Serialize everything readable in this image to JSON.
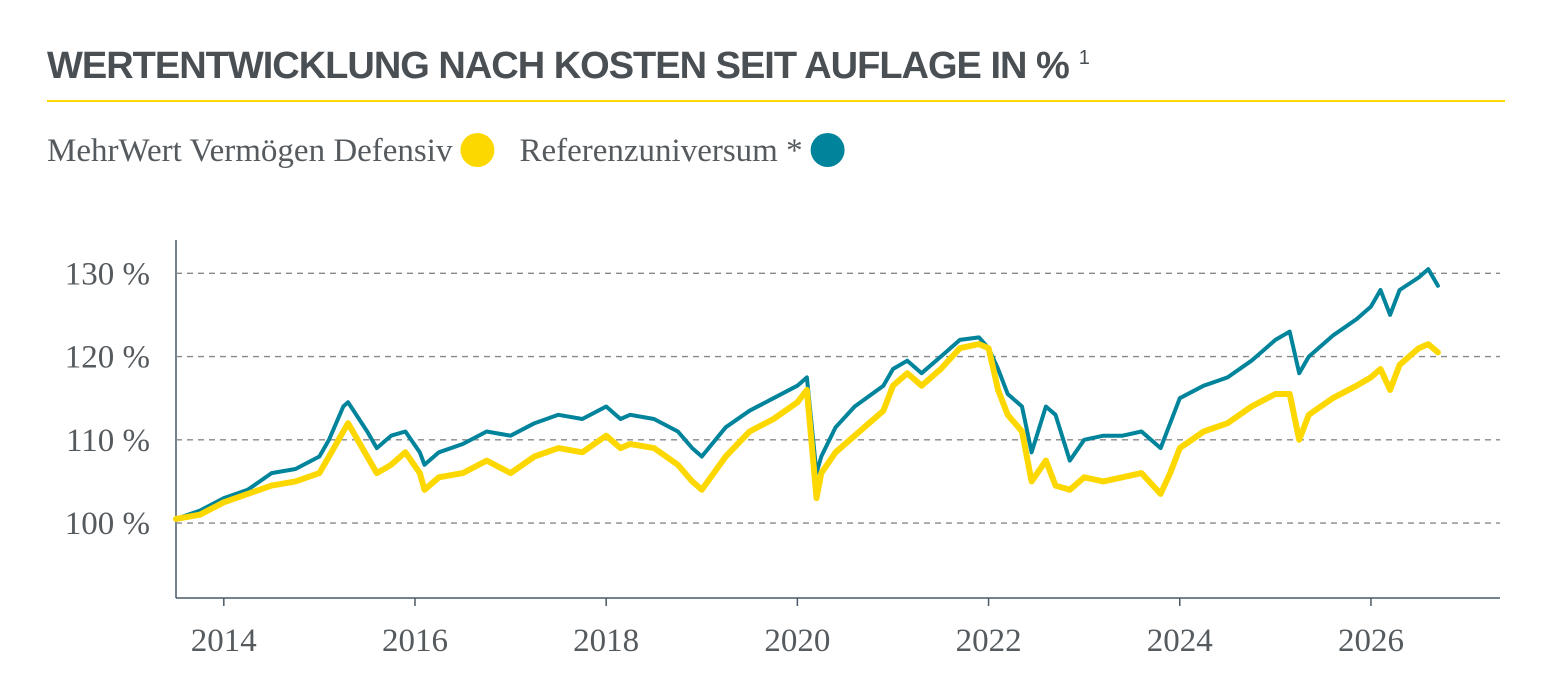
{
  "chart_data": {
    "type": "line",
    "title": "WERTENTWICKLUNG NACH KOSTEN SEIT AUFLAGE IN %",
    "title_note": "1",
    "x": [
      2013.5,
      2013.75,
      2014.0,
      2014.25,
      2014.5,
      2014.75,
      2015.0,
      2015.1,
      2015.25,
      2015.3,
      2015.5,
      2015.6,
      2015.75,
      2015.9,
      2016.05,
      2016.1,
      2016.25,
      2016.5,
      2016.75,
      2017.0,
      2017.25,
      2017.5,
      2017.75,
      2018.0,
      2018.15,
      2018.25,
      2018.5,
      2018.75,
      2018.9,
      2019.0,
      2019.25,
      2019.5,
      2019.75,
      2020.0,
      2020.1,
      2020.2,
      2020.25,
      2020.4,
      2020.6,
      2020.9,
      2021.0,
      2021.15,
      2021.3,
      2021.5,
      2021.7,
      2021.9,
      2022.0,
      2022.1,
      2022.2,
      2022.35,
      2022.45,
      2022.6,
      2022.7,
      2022.85,
      2023.0,
      2023.2,
      2023.4,
      2023.6,
      2023.8,
      2023.9,
      2024.0,
      2024.25,
      2024.5,
      2024.75,
      2025.0,
      2025.15,
      2025.25,
      2025.35,
      2025.6,
      2025.85,
      2026.0,
      2026.1,
      2026.2,
      2026.3,
      2026.5,
      2026.6,
      2026.7
    ],
    "series": [
      {
        "name": "MehrWert Vermögen Defensiv",
        "color": "#fdd800",
        "values": [
          100.5,
          101,
          102.5,
          103.5,
          104.5,
          105,
          106,
          108,
          111,
          112,
          108,
          106,
          107,
          108.5,
          106,
          104,
          105.5,
          106,
          107.5,
          106,
          108,
          109,
          108.5,
          110.5,
          109,
          109.5,
          109,
          107,
          105,
          104,
          108,
          111,
          112.5,
          114.5,
          116,
          103,
          106,
          108.5,
          110.5,
          113.5,
          116.5,
          118,
          116.5,
          118.5,
          121,
          121.5,
          121,
          116,
          113,
          111,
          105,
          107.5,
          104.5,
          104,
          105.5,
          105,
          105.5,
          106,
          103.5,
          106,
          109,
          111,
          112,
          114,
          115.5,
          115.5,
          110,
          113,
          115,
          116.5,
          117.5,
          118.5,
          116,
          119,
          121,
          121.5,
          120.5
        ]
      },
      {
        "name": "Referenzuniversum *",
        "color": "#00849b",
        "values": [
          100.5,
          101.5,
          103,
          104,
          106,
          106.5,
          108,
          110,
          114,
          114.5,
          111,
          109,
          110.5,
          111,
          108.5,
          107,
          108.5,
          109.5,
          111,
          110.5,
          112,
          113,
          112.5,
          114,
          112.5,
          113,
          112.5,
          111,
          109,
          108,
          111.5,
          113.5,
          115,
          116.5,
          117.5,
          106,
          108,
          111.5,
          114,
          116.5,
          118.5,
          119.5,
          118,
          120,
          122,
          122.3,
          121,
          118.5,
          115.5,
          114,
          108.5,
          114,
          113,
          107.5,
          110,
          110.5,
          110.5,
          111,
          109,
          112,
          115,
          116.5,
          117.5,
          119.5,
          122,
          123,
          118,
          120,
          122.5,
          124.5,
          126,
          128,
          125,
          128,
          129.5,
          130.5,
          128.5
        ]
      }
    ],
    "xlim": [
      2013.5,
      2027.35
    ],
    "xticks": [
      2014,
      2016,
      2018,
      2020,
      2022,
      2024,
      2026
    ],
    "ylim": [
      91,
      134
    ],
    "yticks": [
      {
        "value": 100,
        "label": "100 %"
      },
      {
        "value": 110,
        "label": "110 %"
      },
      {
        "value": 120,
        "label": "120 %"
      },
      {
        "value": 130,
        "label": "130 %"
      }
    ],
    "grid": true
  }
}
